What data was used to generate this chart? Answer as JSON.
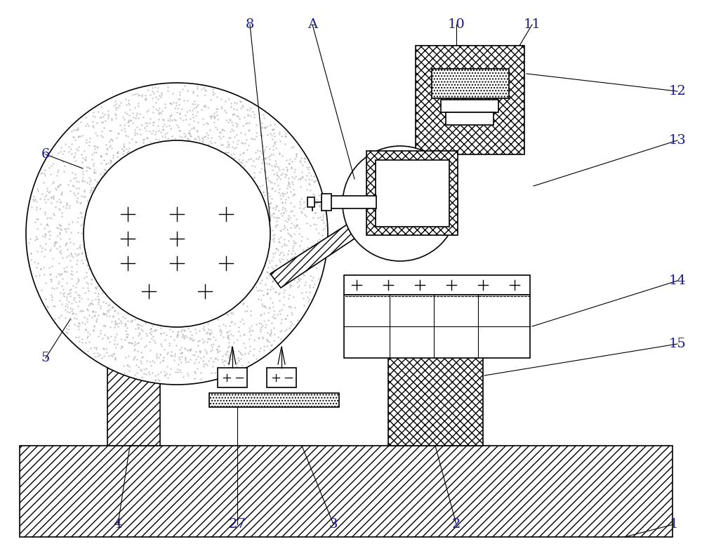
{
  "bg_color": "#ffffff",
  "line_color": "#000000",
  "fig_width": 10.0,
  "fig_height": 7.95,
  "label_color": "#1a1a8c",
  "label_fontsize": 14,
  "lw": 1.2
}
